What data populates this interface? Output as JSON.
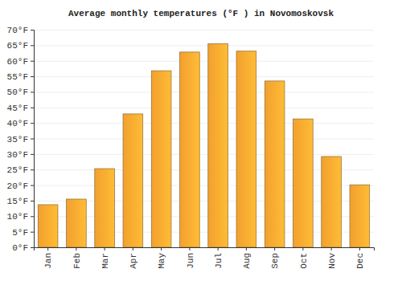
{
  "chart_data": {
    "type": "bar",
    "title": "Average monthly temperatures (°F ) in Novomoskovsk",
    "categories": [
      "Jan",
      "Feb",
      "Mar",
      "Apr",
      "May",
      "Jun",
      "Jul",
      "Aug",
      "Sep",
      "Oct",
      "Nov",
      "Dec"
    ],
    "values": [
      13.7,
      15.5,
      25.3,
      42.9,
      56.8,
      62.8,
      65.5,
      63.1,
      53.5,
      41.3,
      29.2,
      20.1
    ],
    "color": "#fba630",
    "ylim": [
      0,
      70
    ],
    "yticks": [
      {
        "value": 0,
        "label": "0°F"
      },
      {
        "value": 5,
        "label": "5°F"
      },
      {
        "value": 10,
        "label": "10°F"
      },
      {
        "value": 15,
        "label": "15°F"
      },
      {
        "value": 20,
        "label": "20°F"
      },
      {
        "value": 25,
        "label": "25°F"
      },
      {
        "value": 30,
        "label": "30°F"
      },
      {
        "value": 35,
        "label": "35°F"
      },
      {
        "value": 40,
        "label": "40°F"
      },
      {
        "value": 45,
        "label": "45°F"
      },
      {
        "value": 50,
        "label": "50°F"
      },
      {
        "value": 55,
        "label": "55°F"
      },
      {
        "value": 60,
        "label": "60°F"
      },
      {
        "value": 65,
        "label": "65°F"
      },
      {
        "value": 70,
        "label": "70°F"
      }
    ],
    "grid": true
  }
}
